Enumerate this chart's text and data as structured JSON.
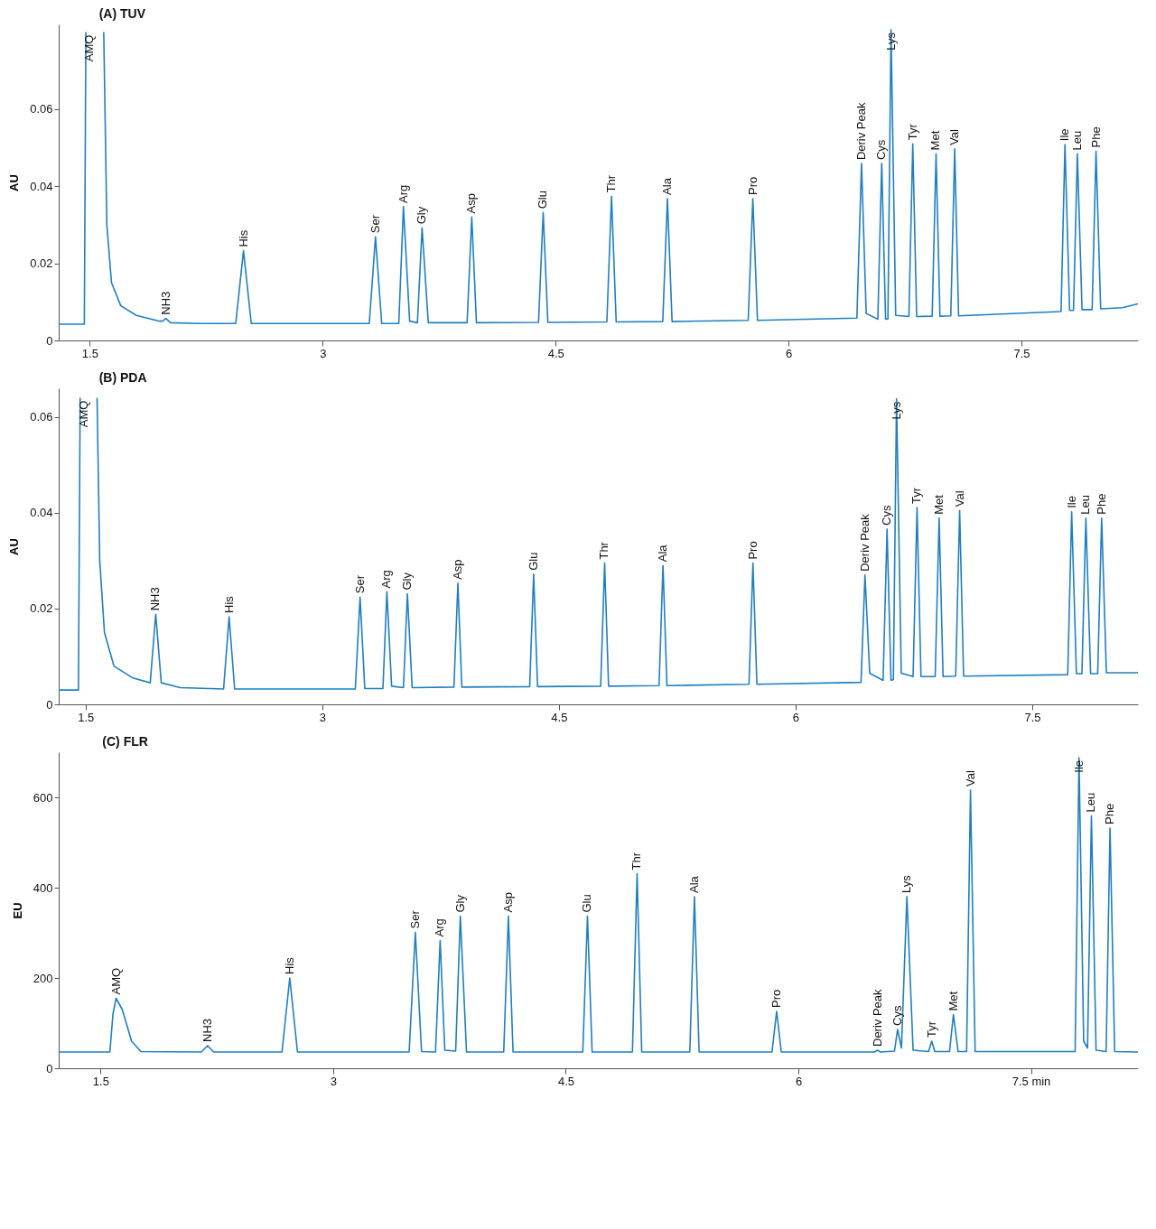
{
  "chart_data": [
    {
      "type": "line",
      "title": "(A) TUV",
      "ylabel": "AU",
      "xlim": [
        1.3,
        8.25
      ],
      "ylim": [
        0,
        0.082
      ],
      "xticks": [
        1.5,
        3,
        4.5,
        6,
        7.5
      ],
      "yticks": [
        0,
        0.02,
        0.04,
        0.06
      ],
      "series": [
        {
          "color": "#1f7fc0",
          "x": [
            1.3,
            1.465,
            1.475,
            1.53,
            1.59,
            1.61,
            1.64,
            1.7,
            1.8,
            1.95,
            1.97,
            1.99,
            2.02,
            2.2,
            2.44,
            2.49,
            2.54,
            3.3,
            3.34,
            3.38,
            3.49,
            3.52,
            3.56,
            3.61,
            3.64,
            3.68,
            3.93,
            3.96,
            3.99,
            4.39,
            4.42,
            4.45,
            4.83,
            4.86,
            4.89,
            5.19,
            5.22,
            5.25,
            5.74,
            5.77,
            5.8,
            6.44,
            6.47,
            6.5,
            6.575,
            6.6,
            6.625,
            6.64,
            6.66,
            6.69,
            6.775,
            6.8,
            6.825,
            6.925,
            6.95,
            6.975,
            7.045,
            7.07,
            7.095,
            7.755,
            7.78,
            7.81,
            7.835,
            7.86,
            7.89,
            7.955,
            7.98,
            8.01,
            8.15,
            8.25
          ],
          "values": [
            0.0042,
            0.0042,
            0.08,
            null,
            0.08,
            0.03,
            0.015,
            0.009,
            0.0065,
            0.005,
            0.005,
            0.0057,
            0.0046,
            0.0044,
            0.0044,
            0.0233,
            0.0044,
            0.0044,
            0.0269,
            0.0044,
            0.0044,
            0.0347,
            0.005,
            0.0046,
            0.0292,
            0.0046,
            0.0046,
            0.032,
            0.0046,
            0.0047,
            0.0332,
            0.0047,
            0.0048,
            0.0374,
            0.0048,
            0.0049,
            0.0368,
            0.0049,
            0.0052,
            0.0368,
            0.0052,
            0.0058,
            0.0459,
            0.007,
            0.0055,
            0.0459,
            0.0055,
            0.0056,
            0.0806,
            0.0065,
            0.0062,
            0.051,
            0.0062,
            0.0063,
            0.0484,
            0.0063,
            0.0064,
            0.0497,
            0.0064,
            0.0075,
            0.0508,
            0.0078,
            0.0078,
            0.0484,
            0.008,
            0.008,
            0.0491,
            0.0082,
            0.0085,
            0.0095
          ]
        }
      ],
      "annotations": [
        {
          "text": "AMQ",
          "x": 1.5,
          "y": 0.08
        },
        {
          "text": "NH3",
          "x": 1.99,
          "y": 0.0057
        },
        {
          "text": "His",
          "x": 2.49,
          "y": 0.0233
        },
        {
          "text": "Ser",
          "x": 3.34,
          "y": 0.0269
        },
        {
          "text": "Arg",
          "x": 3.52,
          "y": 0.0347
        },
        {
          "text": "Gly",
          "x": 3.64,
          "y": 0.0292
        },
        {
          "text": "Asp",
          "x": 3.96,
          "y": 0.032
        },
        {
          "text": "Glu",
          "x": 4.42,
          "y": 0.0332
        },
        {
          "text": "Thr",
          "x": 4.86,
          "y": 0.0374
        },
        {
          "text": "Ala",
          "x": 5.22,
          "y": 0.0368
        },
        {
          "text": "Pro",
          "x": 5.77,
          "y": 0.0368
        },
        {
          "text": "Deriv Peak",
          "x": 6.47,
          "y": 0.0459
        },
        {
          "text": "Cys",
          "x": 6.6,
          "y": 0.0459
        },
        {
          "text": "Lys",
          "x": 6.66,
          "y": 0.0806
        },
        {
          "text": "Tyr",
          "x": 6.8,
          "y": 0.051
        },
        {
          "text": "Met",
          "x": 6.95,
          "y": 0.0484
        },
        {
          "text": "Val",
          "x": 7.07,
          "y": 0.0497
        },
        {
          "text": "Ile",
          "x": 7.78,
          "y": 0.0508
        },
        {
          "text": "Leu",
          "x": 7.86,
          "y": 0.0484
        },
        {
          "text": "Phe",
          "x": 7.98,
          "y": 0.0491
        }
      ]
    },
    {
      "type": "line",
      "title": "(B) PDA",
      "ylabel": "AU",
      "xlim": [
        1.33,
        8.17
      ],
      "ylim": [
        0,
        0.066
      ],
      "xticks": [
        1.5,
        3,
        4.5,
        6,
        7.5
      ],
      "yticks": [
        0,
        0.02,
        0.04,
        0.06
      ],
      "series": [
        {
          "color": "#1f7fc0",
          "x": [
            1.33,
            1.455,
            1.466,
            1.52,
            1.573,
            1.59,
            1.62,
            1.68,
            1.8,
            1.91,
            1.945,
            1.98,
            2.1,
            2.375,
            2.41,
            2.445,
            3.21,
            3.24,
            3.27,
            3.385,
            3.41,
            3.44,
            3.515,
            3.54,
            3.57,
            3.835,
            3.86,
            3.885,
            4.315,
            4.34,
            4.365,
            4.765,
            4.79,
            4.815,
            5.135,
            5.16,
            5.185,
            5.705,
            5.73,
            5.755,
            6.415,
            6.44,
            6.47,
            6.555,
            6.58,
            6.605,
            6.62,
            6.64,
            6.67,
            6.745,
            6.77,
            6.795,
            6.885,
            6.91,
            6.935,
            7.015,
            7.04,
            7.065,
            7.725,
            7.75,
            7.78,
            7.815,
            7.84,
            7.87,
            7.915,
            7.94,
            7.97,
            8.17
          ],
          "values": [
            0.003,
            0.003,
            0.064,
            null,
            0.064,
            0.03,
            0.015,
            0.008,
            0.0055,
            0.0045,
            0.0188,
            0.0045,
            0.0035,
            0.0032,
            0.0183,
            0.0032,
            0.0032,
            0.0224,
            0.0033,
            0.0033,
            0.0235,
            0.0038,
            0.0035,
            0.0231,
            0.0035,
            0.0036,
            0.0253,
            0.0036,
            0.0037,
            0.0272,
            0.0037,
            0.0038,
            0.0295,
            0.0038,
            0.0039,
            0.029,
            0.0039,
            0.0042,
            0.0295,
            0.0042,
            0.0046,
            0.027,
            0.0065,
            0.005,
            0.0366,
            0.005,
            0.0052,
            0.0638,
            0.0065,
            0.0058,
            0.0411,
            0.0058,
            0.0058,
            0.0389,
            0.0058,
            0.0059,
            0.0405,
            0.0059,
            0.0062,
            0.0402,
            0.0064,
            0.0064,
            0.0389,
            0.0064,
            0.0064,
            0.0389,
            0.0066,
            0.0066
          ]
        }
      ],
      "annotations": [
        {
          "text": "AMQ",
          "x": 1.49,
          "y": 0.064
        },
        {
          "text": "NH3",
          "x": 1.945,
          "y": 0.0188
        },
        {
          "text": "His",
          "x": 2.41,
          "y": 0.0183
        },
        {
          "text": "Ser",
          "x": 3.24,
          "y": 0.0224
        },
        {
          "text": "Arg",
          "x": 3.41,
          "y": 0.0235
        },
        {
          "text": "Gly",
          "x": 3.54,
          "y": 0.0231
        },
        {
          "text": "Asp",
          "x": 3.86,
          "y": 0.0253
        },
        {
          "text": "Glu",
          "x": 4.34,
          "y": 0.0272
        },
        {
          "text": "Thr",
          "x": 4.79,
          "y": 0.0295
        },
        {
          "text": "Ala",
          "x": 5.16,
          "y": 0.029
        },
        {
          "text": "Pro",
          "x": 5.73,
          "y": 0.0295
        },
        {
          "text": "Deriv Peak",
          "x": 6.44,
          "y": 0.027
        },
        {
          "text": "Cys",
          "x": 6.58,
          "y": 0.0366
        },
        {
          "text": "Lys",
          "x": 6.64,
          "y": 0.0638
        },
        {
          "text": "Tyr",
          "x": 6.77,
          "y": 0.0411
        },
        {
          "text": "Met",
          "x": 6.91,
          "y": 0.0389
        },
        {
          "text": "Val",
          "x": 7.04,
          "y": 0.0405
        },
        {
          "text": "Ile",
          "x": 7.75,
          "y": 0.0402
        },
        {
          "text": "Leu",
          "x": 7.84,
          "y": 0.0389
        },
        {
          "text": "Phe",
          "x": 7.94,
          "y": 0.0389
        }
      ]
    },
    {
      "type": "line",
      "title": "(C) FLR",
      "ylabel": "EU",
      "xlim": [
        1.23,
        8.19
      ],
      "ylim": [
        0,
        700
      ],
      "xticks": [
        1.5,
        3,
        4.5,
        6,
        {
          "value": 7.5,
          "label": "7.5 min"
        }
      ],
      "yticks": [
        0,
        200,
        400,
        600
      ],
      "series": [
        {
          "color": "#1f7fc0",
          "x": [
            1.23,
            1.56,
            1.58,
            1.6,
            1.64,
            1.7,
            1.76,
            2.15,
            2.19,
            2.23,
            2.67,
            2.72,
            2.77,
            3.49,
            3.53,
            3.57,
            3.66,
            3.69,
            3.72,
            3.79,
            3.82,
            3.86,
            4.1,
            4.13,
            4.16,
            4.61,
            4.64,
            4.67,
            4.93,
            4.96,
            4.99,
            5.3,
            5.33,
            5.36,
            5.83,
            5.86,
            5.89,
            6.49,
            6.51,
            6.53,
            6.62,
            6.64,
            6.665,
            6.7,
            6.74,
            6.84,
            6.86,
            6.88,
            6.975,
            7.0,
            7.03,
            7.085,
            7.11,
            7.14,
            7.785,
            7.81,
            7.84,
            7.865,
            7.89,
            7.92,
            7.985,
            8.01,
            8.04,
            8.19
          ],
          "values": [
            36,
            36,
            120,
            155,
            130,
            60,
            37,
            36,
            50,
            36,
            36,
            200,
            36,
            36,
            301,
            37,
            36,
            283,
            40,
            38,
            337,
            36,
            36,
            337,
            36,
            36,
            337,
            36,
            36,
            431,
            36,
            36,
            380,
            36,
            36,
            126,
            36,
            36,
            40,
            36,
            38,
            86,
            45,
            380,
            40,
            37,
            60,
            37,
            37,
            119,
            37,
            37,
            616,
            37,
            37,
            688,
            60,
            45,
            559,
            40,
            37,
            532,
            37,
            36
          ]
        }
      ],
      "annotations": [
        {
          "text": "AMQ",
          "x": 1.6,
          "y": 155
        },
        {
          "text": "NH3",
          "x": 2.19,
          "y": 50
        },
        {
          "text": "His",
          "x": 2.72,
          "y": 200
        },
        {
          "text": "Ser",
          "x": 3.53,
          "y": 301
        },
        {
          "text": "Arg",
          "x": 3.69,
          "y": 283
        },
        {
          "text": "Gly",
          "x": 3.82,
          "y": 337
        },
        {
          "text": "Asp",
          "x": 4.13,
          "y": 337
        },
        {
          "text": "Glu",
          "x": 4.64,
          "y": 337
        },
        {
          "text": "Thr",
          "x": 4.96,
          "y": 431
        },
        {
          "text": "Ala",
          "x": 5.33,
          "y": 380
        },
        {
          "text": "Pro",
          "x": 5.86,
          "y": 126
        },
        {
          "text": "Deriv Peak",
          "x": 6.51,
          "y": 40
        },
        {
          "text": "Cys",
          "x": 6.64,
          "y": 86
        },
        {
          "text": "Lys",
          "x": 6.7,
          "y": 380
        },
        {
          "text": "Tyr",
          "x": 6.86,
          "y": 60
        },
        {
          "text": "Met",
          "x": 7.0,
          "y": 119
        },
        {
          "text": "Val",
          "x": 7.11,
          "y": 616
        },
        {
          "text": "Ile",
          "x": 7.81,
          "y": 688
        },
        {
          "text": "Leu",
          "x": 7.89,
          "y": 559
        },
        {
          "text": "Phe",
          "x": 8.01,
          "y": 532
        }
      ]
    }
  ]
}
